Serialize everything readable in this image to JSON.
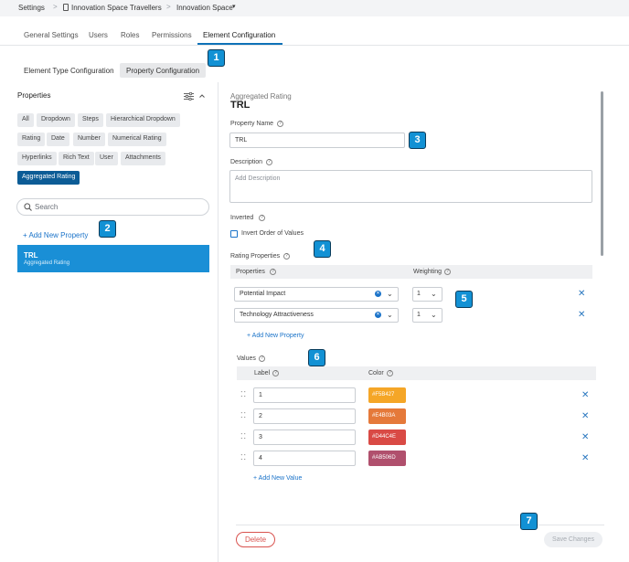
{
  "breadcrumb": {
    "items": [
      "Settings",
      "Innovation Space Travellers",
      "Innovation Space"
    ],
    "separator": ">"
  },
  "tabs": [
    "General Settings",
    "Users",
    "Roles",
    "Permissions",
    "Element Configuration"
  ],
  "active_tab": "Element Configuration",
  "subtabs": [
    "Element Type Configuration",
    "Property Configuration"
  ],
  "active_subtab": "Property Configuration",
  "callouts": [
    "1",
    "2",
    "3",
    "4",
    "5",
    "6",
    "7"
  ],
  "left_panel": {
    "title": "Properties",
    "filters": [
      "All",
      "Dropdown",
      "Steps",
      "Hierarchical Dropdown",
      "Rating",
      "Date",
      "Number",
      "Numerical Rating",
      "Hyperlinks",
      "Rich Text",
      "User",
      "Attachments",
      "Aggregated Rating"
    ],
    "active_filter": "Aggregated Rating",
    "search_placeholder": "Search",
    "add_new_property": "+ Add New Property",
    "items": [
      {
        "title": "TRL",
        "subtitle": "Aggregated Rating"
      }
    ]
  },
  "form": {
    "kicker": "Aggregated Rating",
    "title": "TRL",
    "property_name_label": "Property Name",
    "property_name_value": "TRL",
    "description_label": "Description",
    "description_placeholder": "Add Description",
    "inverted_label": "Inverted",
    "invert_checkbox_label": "Invert Order of Values",
    "rating_properties_label": "Rating Properties",
    "rating_columns": [
      "Properties",
      "Weighting"
    ],
    "rating_rows": [
      {
        "property": "Potential Impact",
        "weighting": "1"
      },
      {
        "property": "Technology Attractiveness",
        "weighting": "1"
      }
    ],
    "add_new_property": "+ Add New Property",
    "values_label": "Values",
    "values_columns": [
      "Label",
      "Color"
    ],
    "values_rows": [
      {
        "label": "1",
        "color": "#F5B427"
      },
      {
        "label": "2",
        "color": "#E4B03A"
      },
      {
        "label": "3",
        "color": "#D44C4E"
      },
      {
        "label": "4",
        "color": "#AB506D"
      }
    ],
    "add_new_value": "+ Add New Value",
    "delete_label": "Delete",
    "save_label": "Save Changes"
  },
  "colors": {
    "accent": "#0e72b8",
    "selected_item": "#1a8fd6",
    "swatches": [
      "#f5a627",
      "#e5793a",
      "#d94a45",
      "#b0506d"
    ]
  }
}
